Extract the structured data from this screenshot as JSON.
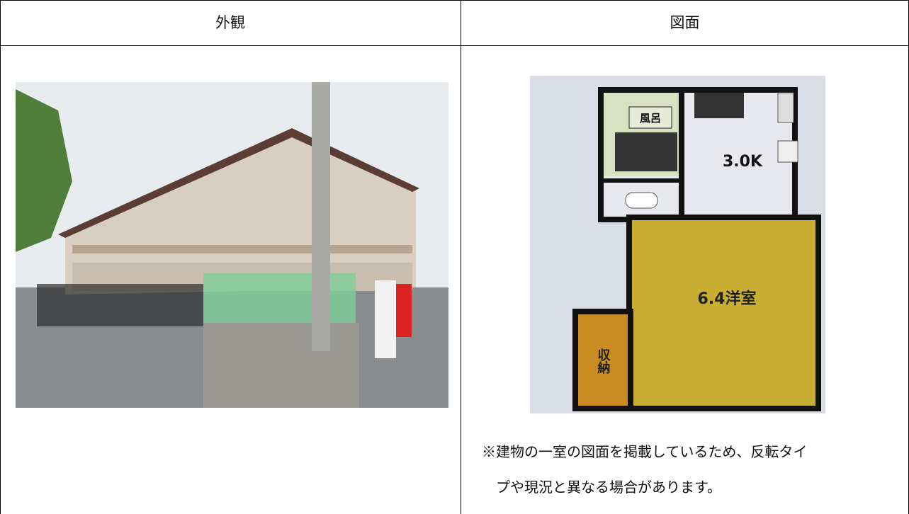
{
  "table": {
    "headers": [
      "外観",
      "図面"
    ]
  },
  "floor_plan": {
    "rooms": [
      "風呂",
      "3.0K",
      "6.4洋室",
      "収納"
    ]
  },
  "note": {
    "lines": [
      "※建物の一室の図面を掲載しているため、反転タイ",
      "プや現況と異なる場合があります。"
    ]
  }
}
